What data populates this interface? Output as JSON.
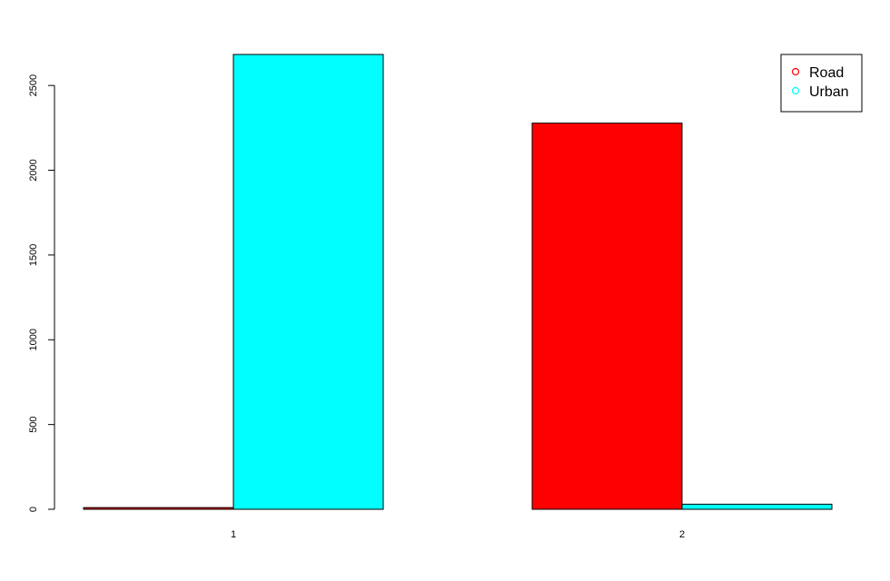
{
  "chart_data": {
    "type": "bar",
    "categories": [
      "1",
      "2"
    ],
    "series": [
      {
        "name": "Road",
        "color": "#ff0000",
        "values": [
          10,
          2278
        ]
      },
      {
        "name": "Urban",
        "color": "#00ffff",
        "values": [
          2683,
          30
        ]
      }
    ],
    "ylim": [
      0,
      2683
    ],
    "yticks": [
      "0",
      "500",
      "1000",
      "1500",
      "2000",
      "2500"
    ],
    "legend_position": "top-right",
    "grid": false,
    "title": "",
    "xlabel": "",
    "ylabel": ""
  }
}
